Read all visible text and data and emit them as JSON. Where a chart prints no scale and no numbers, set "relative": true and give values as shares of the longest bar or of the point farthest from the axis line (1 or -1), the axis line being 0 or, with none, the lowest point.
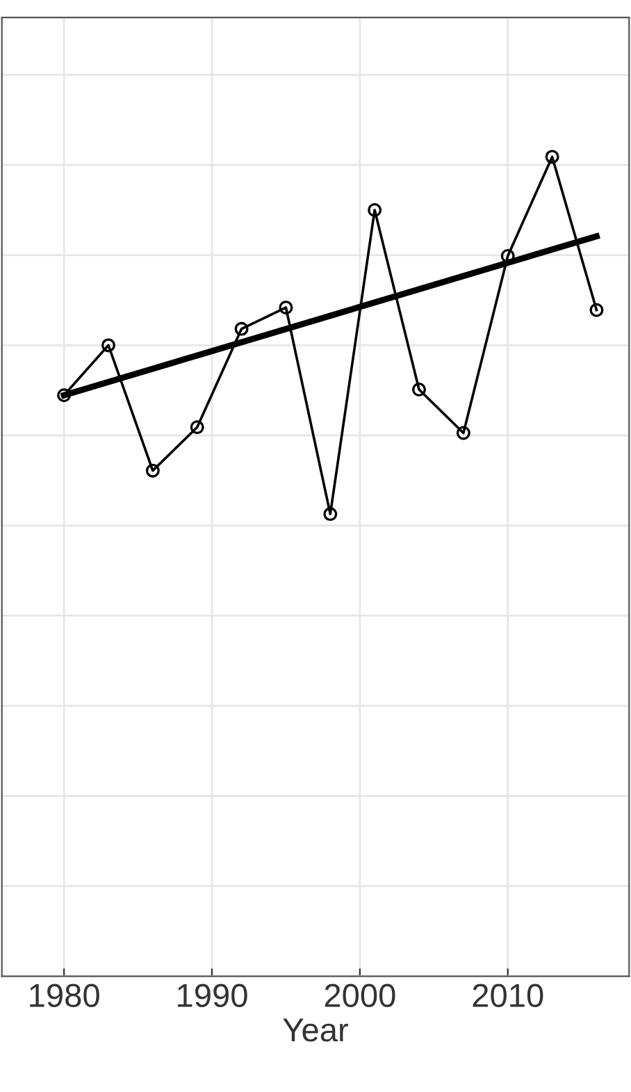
{
  "chart_data": {
    "type": "line",
    "xlabel": "Year",
    "relative": true,
    "grid": true,
    "tick_labels": "x",
    "xlim": [
      1975.8,
      2018.2
    ],
    "xticks": [
      1980,
      1990,
      2000,
      2010
    ],
    "series": [
      {
        "color": "#000000",
        "marker": "circle",
        "line_style": "solid",
        "x": [
          1980,
          1983,
          1986,
          1989,
          1992,
          1995,
          1998,
          2001,
          2004,
          2007,
          2010,
          2013,
          2016
        ],
        "values": [
          0.709,
          0.77,
          0.617,
          0.67,
          0.79,
          0.816,
          0.564,
          0.935,
          0.716,
          0.663,
          0.879,
          1.0,
          0.813
        ]
      },
      {
        "color": "#000000",
        "marker": "none",
        "line_style": "solid",
        "x": [
          1980,
          2016
        ],
        "values": [
          0.709,
          0.903
        ]
      }
    ]
  }
}
